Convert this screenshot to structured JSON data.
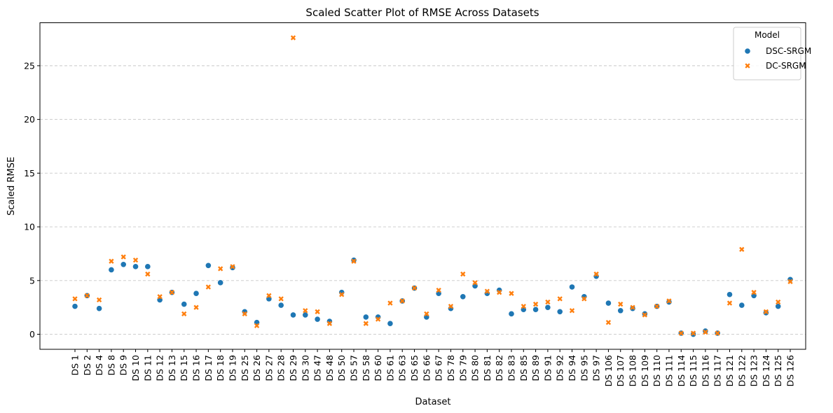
{
  "chart_data": {
    "type": "scatter",
    "title": "Scaled Scatter Plot of RMSE Across Datasets",
    "xlabel": "Dataset",
    "ylabel": "Scaled RMSE",
    "ylim": [
      -1.4,
      29.0
    ],
    "yticks": [
      0,
      5,
      10,
      15,
      20,
      25
    ],
    "grid": "y-dashed",
    "legend": {
      "title": "Model",
      "placement": "top-right"
    },
    "categories": [
      "DS 1",
      "DS 2",
      "DS 4",
      "DS 8",
      "DS 9",
      "DS 10",
      "DS 11",
      "DS 12",
      "DS 13",
      "DS 15",
      "DS 16",
      "DS 17",
      "DS 18",
      "DS 19",
      "DS 25",
      "DS 26",
      "DS 27",
      "DS 28",
      "DS 29",
      "DS 30",
      "DS 47",
      "DS 48",
      "DS 50",
      "DS 57",
      "DS 58",
      "DS 60",
      "DS 61",
      "DS 63",
      "DS 65",
      "DS 66",
      "DS 67",
      "DS 78",
      "DS 79",
      "DS 80",
      "DS 81",
      "DS 82",
      "DS 83",
      "DS 85",
      "DS 89",
      "DS 91",
      "DS 92",
      "DS 94",
      "DS 95",
      "DS 97",
      "DS 106",
      "DS 107",
      "DS 108",
      "DS 109",
      "DS 110",
      "DS 111",
      "DS 114",
      "DS 115",
      "DS 116",
      "DS 117",
      "DS 121",
      "DS 122",
      "DS 123",
      "DS 124",
      "DS 125",
      "DS 126"
    ],
    "series": [
      {
        "name": "DSC-SRGM",
        "color": "#1f77b4",
        "marker": "circle",
        "values": [
          2.6,
          3.6,
          2.4,
          6.0,
          6.5,
          6.3,
          6.3,
          3.2,
          3.9,
          2.8,
          3.8,
          6.4,
          4.8,
          6.2,
          2.1,
          1.1,
          3.3,
          2.7,
          1.8,
          1.8,
          1.4,
          1.2,
          3.9,
          6.9,
          1.6,
          1.6,
          1.0,
          3.1,
          4.3,
          1.6,
          3.8,
          2.4,
          3.5,
          4.5,
          3.8,
          4.1,
          1.9,
          2.3,
          2.3,
          2.5,
          2.1,
          4.4,
          3.5,
          5.4,
          2.9,
          2.2,
          2.4,
          1.9,
          2.6,
          3.0,
          0.1,
          0.0,
          0.3,
          0.1,
          3.7,
          2.7,
          3.6,
          2.0,
          2.6,
          5.1
        ]
      },
      {
        "name": "DC-SRGM",
        "color": "#ff7f0e",
        "marker": "x",
        "values": [
          3.3,
          3.6,
          3.2,
          6.8,
          7.2,
          6.9,
          5.6,
          3.5,
          3.9,
          1.9,
          2.5,
          4.4,
          6.1,
          6.3,
          1.9,
          0.8,
          3.6,
          3.3,
          27.6,
          2.2,
          2.1,
          1.0,
          3.7,
          6.8,
          1.0,
          1.4,
          2.9,
          3.1,
          4.3,
          1.9,
          4.1,
          2.6,
          5.6,
          4.8,
          4.0,
          3.9,
          3.8,
          2.6,
          2.8,
          3.0,
          3.3,
          2.2,
          3.3,
          5.6,
          1.1,
          2.8,
          2.5,
          1.8,
          2.6,
          3.1,
          0.1,
          0.1,
          0.2,
          0.1,
          2.9,
          7.9,
          3.9,
          2.1,
          3.0,
          4.9
        ]
      }
    ]
  }
}
